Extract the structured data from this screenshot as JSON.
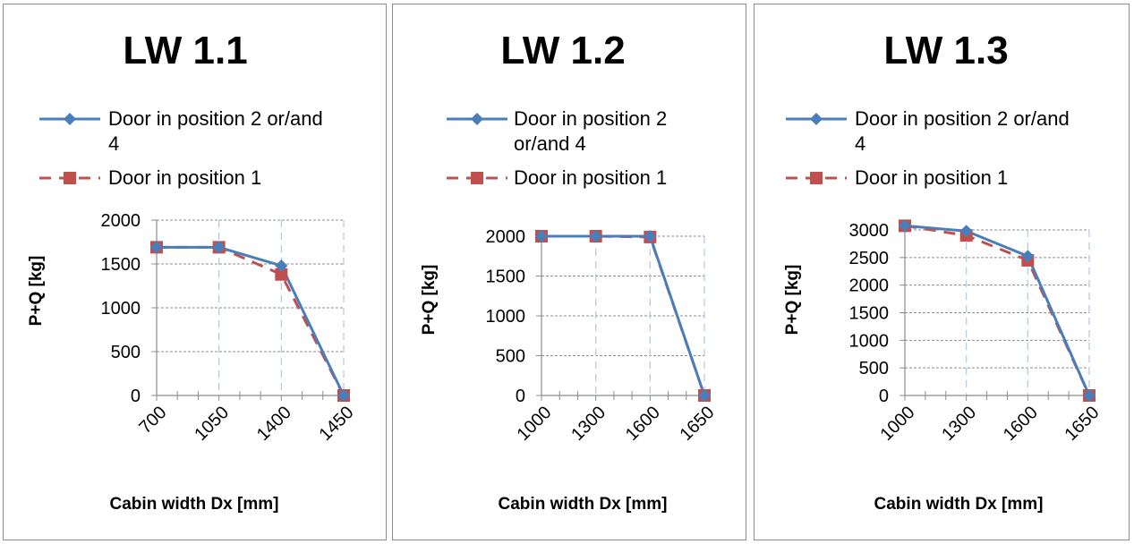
{
  "chart_data": [
    {
      "type": "line",
      "title": "LW 1.1",
      "xlabel": "Cabin width Dx  [mm]",
      "ylabel": "P+Q [kg]",
      "categories": [
        "700",
        "1050",
        "1400",
        "1450"
      ],
      "ylim": [
        0,
        2000
      ],
      "yticks": [
        "0",
        "500",
        "1000",
        "1500",
        "2000"
      ],
      "grid": true,
      "legend_position": "top",
      "legend_lines": [
        [
          "Door in position 2 or/and",
          "4"
        ],
        [
          "Door in position 1"
        ]
      ],
      "series": [
        {
          "name": "Door in position 2 or/and 4",
          "values": [
            1690,
            1690,
            1480,
            0
          ],
          "color": "#4a7ebb",
          "marker": "diamond",
          "dash": "solid"
        },
        {
          "name": "Door in position 1",
          "values": [
            1690,
            1690,
            1380,
            0
          ],
          "color": "#c0504d",
          "marker": "square",
          "dash": "dashed"
        }
      ]
    },
    {
      "type": "line",
      "title": "LW 1.2",
      "xlabel": "Cabin width Dx  [mm]",
      "ylabel": "P+Q [kg]",
      "categories": [
        "1000",
        "1300",
        "1600",
        "1650"
      ],
      "ylim": [
        0,
        2000
      ],
      "yticks": [
        "0",
        "500",
        "1000",
        "1500",
        "2000"
      ],
      "grid": true,
      "legend_position": "top",
      "legend_lines": [
        [
          "Door in position 2",
          "or/and 4"
        ],
        [
          "Door in position 1"
        ]
      ],
      "series": [
        {
          "name": "Door in position 2 or/and 4",
          "values": [
            2000,
            2000,
            2000,
            0
          ],
          "color": "#4a7ebb",
          "marker": "diamond",
          "dash": "solid"
        },
        {
          "name": "Door in position 1",
          "values": [
            2000,
            2000,
            1990,
            0
          ],
          "color": "#c0504d",
          "marker": "square",
          "dash": "dashed"
        }
      ]
    },
    {
      "type": "line",
      "title": "LW 1.3",
      "xlabel": "Cabin width Dx  [mm]",
      "ylabel": "P+Q [kg]",
      "categories": [
        "1000",
        "1300",
        "1600",
        "1650"
      ],
      "ylim": [
        0,
        3000
      ],
      "yticks": [
        "0",
        "500",
        "1000",
        "1500",
        "2000",
        "2500",
        "3000"
      ],
      "grid": true,
      "legend_position": "top",
      "legend_lines": [
        [
          "Door in position 2 or/and",
          "4"
        ],
        [
          "Door in position 1"
        ]
      ],
      "series": [
        {
          "name": "Door in position 2 or/and 4",
          "values": [
            3075,
            2980,
            2525,
            0
          ],
          "color": "#4a7ebb",
          "marker": "diamond",
          "dash": "solid"
        },
        {
          "name": "Door in position 1",
          "values": [
            3075,
            2900,
            2450,
            0
          ],
          "color": "#c0504d",
          "marker": "square",
          "dash": "dashed"
        }
      ]
    }
  ]
}
